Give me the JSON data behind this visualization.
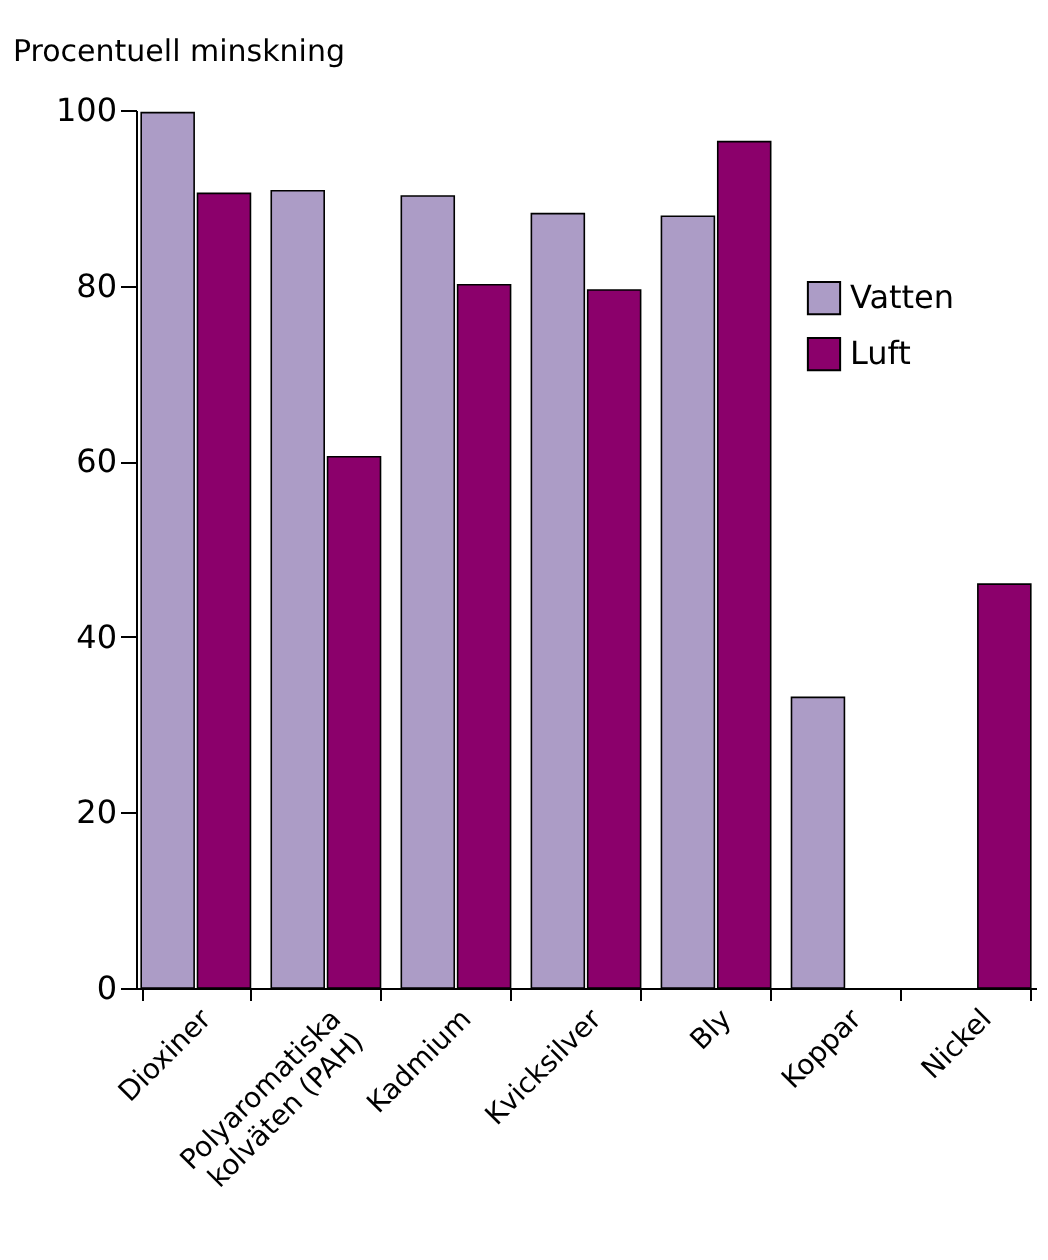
{
  "chart_data": {
    "type": "bar",
    "ylabel": "Procentuell minskning",
    "categories": [
      "Dioxiner",
      "Polyaromatiska kolväten (PAH)",
      "Kadmium",
      "Kvicksilver",
      "Bly",
      "Koppar",
      "Nickel"
    ],
    "series": [
      {
        "name": "Vatten",
        "color": "#ac9cc6",
        "values": [
          99.7,
          90.8,
          90.2,
          88.2,
          87.9,
          33.1,
          null
        ]
      },
      {
        "name": "Luft",
        "color": "#8b006b",
        "values": [
          90.5,
          60.5,
          80.1,
          79.5,
          96.4,
          null,
          46
        ]
      }
    ],
    "ylim": [
      0,
      100
    ],
    "yticks": [
      0,
      20,
      40,
      60,
      80,
      100
    ],
    "legend": "top right"
  }
}
